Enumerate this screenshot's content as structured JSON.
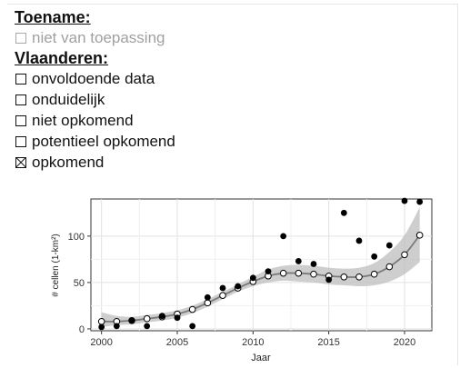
{
  "legend": {
    "title": "Toename:",
    "na_label": "niet van toepassing",
    "region_title": "Vlaanderen:",
    "items": [
      {
        "label": "onvoldoende data",
        "checked": false
      },
      {
        "label": "onduidelijk",
        "checked": false
      },
      {
        "label": "niet opkomend",
        "checked": false
      },
      {
        "label": "potentieel opkomend",
        "checked": false
      },
      {
        "label": "opkomend",
        "checked": true
      }
    ]
  },
  "chart_data": {
    "type": "scatter",
    "xlabel": "Jaar",
    "ylabel": "# cellen (1-km²)",
    "xlim": [
      1999.3,
      2021.8
    ],
    "ylim": [
      -2,
      140
    ],
    "xticks": [
      2000,
      2005,
      2010,
      2015,
      2020
    ],
    "yticks": [
      0,
      50,
      100
    ],
    "grid": true,
    "colors": {
      "points": "#000000",
      "fit": "#7a7a7a",
      "band": "#bdbdbd",
      "panel_border": "#333333"
    },
    "observed": {
      "x": [
        2000,
        2001,
        2002,
        2003,
        2004,
        2005,
        2006,
        2007,
        2008,
        2009,
        2010,
        2011,
        2012,
        2013,
        2014,
        2015,
        2016,
        2017,
        2018,
        2019,
        2020,
        2021
      ],
      "y": [
        2,
        3,
        9,
        3,
        14,
        12,
        3,
        34,
        44,
        46,
        55,
        62,
        100,
        73,
        70,
        53,
        125,
        95,
        78,
        90,
        138,
        137
      ]
    },
    "fitted": {
      "x": [
        2000,
        2001,
        2002,
        2003,
        2004,
        2005,
        2006,
        2007,
        2008,
        2009,
        2010,
        2011,
        2012,
        2013,
        2014,
        2015,
        2016,
        2017,
        2018,
        2019,
        2020,
        2021
      ],
      "y": [
        8,
        8,
        9,
        11,
        13,
        16,
        21,
        28,
        36,
        44,
        51,
        57,
        60,
        60,
        59,
        57,
        56,
        56,
        59,
        67,
        80,
        101
      ],
      "lower": [
        2,
        4,
        5,
        7,
        9,
        12,
        17,
        24,
        32,
        40,
        46,
        50,
        52,
        51,
        50,
        48,
        47,
        46,
        47,
        51,
        59,
        72
      ],
      "upper": [
        18,
        14,
        13,
        15,
        17,
        20,
        25,
        32,
        40,
        48,
        56,
        64,
        68,
        69,
        68,
        66,
        65,
        66,
        71,
        83,
        101,
        131
      ]
    }
  }
}
